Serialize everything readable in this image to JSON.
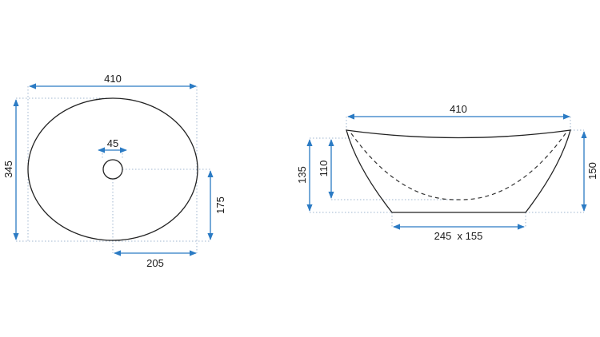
{
  "colors": {
    "dimension_line": "#2b7bc4",
    "outline": "#222222",
    "extension_line": "#9fb6cf"
  },
  "top_view": {
    "width_label": "410",
    "depth_label": "345",
    "drain_label": "45",
    "drain_offset_y_label": "175",
    "drain_offset_x_label": "205"
  },
  "side_view": {
    "width_label": "410",
    "outer_height_label": "135",
    "inner_depth_label": "110",
    "total_height_label": "150",
    "base_label": "245  x 155"
  }
}
